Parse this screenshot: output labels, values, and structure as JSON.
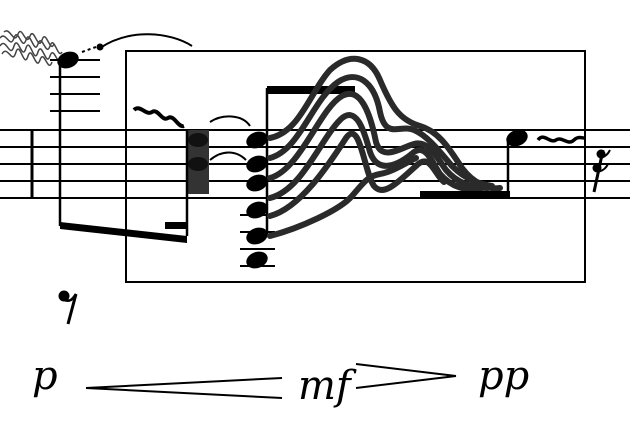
{
  "score": {
    "dynamics": {
      "start": "p",
      "middle": "mf",
      "end": "pp"
    },
    "hairpins": [
      "crescendo",
      "decrescendo"
    ],
    "colors": {
      "ink": "#000000",
      "gesture_lines": "#2a2a2a",
      "tone_cluster": "#333333",
      "paper": "#ffffff"
    },
    "icons": [
      "trill-scribble-icon",
      "eighth-rest-icon",
      "sixteenth-rest-icon",
      "wavy-glissando-icon"
    ]
  }
}
